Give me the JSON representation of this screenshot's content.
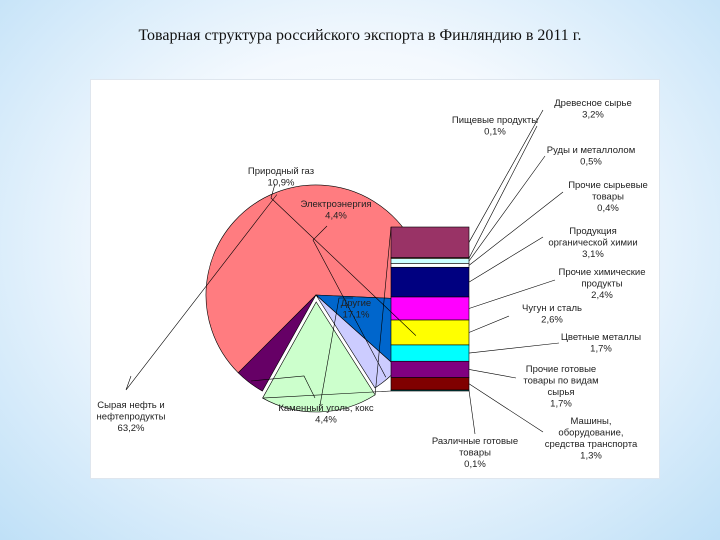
{
  "slide_title": "Товарная структура российского экспорта в Финляндию в 2011 г.",
  "chart_data": {
    "type": "bar-of-pie",
    "title": "",
    "pie": [
      {
        "name": "Сырая нефть и нефтепродукты",
        "value": 63.2,
        "label": "63,2%",
        "color": "#ff7c80"
      },
      {
        "name": "Природный газ",
        "value": 10.9,
        "label": "10,9%",
        "color": "#0066cc"
      },
      {
        "name": "Электроэнергия",
        "value": 4.4,
        "label": "4,4%",
        "color": "#ccccff"
      },
      {
        "name": "Другие",
        "value": 17.1,
        "label": "17,1%",
        "color": "#ccffcc"
      },
      {
        "name": "Каменный уголь, кокс",
        "value": 4.4,
        "label": "4,4%",
        "color": "#660066"
      }
    ],
    "bar": [
      {
        "name": "Древесное сырье",
        "value": 3.2,
        "label": "3,2%",
        "color": "#993366"
      },
      {
        "name": "Пищевые продукты",
        "value": 0.1,
        "label": "0,1%",
        "color": "#ffffcc"
      },
      {
        "name": "Руды и металлолом",
        "value": 0.5,
        "label": "0,5%",
        "color": "#ccffff"
      },
      {
        "name": "Прочие сырьевые товары",
        "value": 0.4,
        "label": "0,4%",
        "color": "#ffffff"
      },
      {
        "name": "Продукция органической химии",
        "value": 3.1,
        "label": "3,1%",
        "color": "#000080"
      },
      {
        "name": "Прочие химические продукты",
        "value": 2.4,
        "label": "2,4%",
        "color": "#ff00ff"
      },
      {
        "name": "Чугун и сталь",
        "value": 2.6,
        "label": "2,6%",
        "color": "#ffff00"
      },
      {
        "name": "Цветные металлы",
        "value": 1.7,
        "label": "1,7%",
        "color": "#00ffff"
      },
      {
        "name": "Прочие готовые товары по видам сырья",
        "value": 1.7,
        "label": "1,7%",
        "color": "#800080"
      },
      {
        "name": "Машины, оборудование, средства транспорта",
        "value": 1.3,
        "label": "1,3%",
        "color": "#800000"
      },
      {
        "name": "Различные готовые товары",
        "value": 0.1,
        "label": "0,1%",
        "color": "#008080"
      }
    ],
    "legend": "none",
    "grid": false
  },
  "label_lines": {
    "pie": [
      [
        "Сырая нефть и",
        "нефтепродукты",
        "63,2%"
      ],
      [
        "Природный газ",
        "10,9%"
      ],
      [
        "Электроэнергия",
        "4,4%"
      ],
      [
        "Другие",
        "17,1%"
      ],
      [
        "Каменный уголь, кокс",
        "4,4%"
      ]
    ],
    "bar": [
      [
        "Древесное сырье",
        "3,2%"
      ],
      [
        "Пищевые продукты",
        "0,1%"
      ],
      [
        "Руды и металлолом",
        "0,5%"
      ],
      [
        "Прочие сырьевые",
        "товары",
        "0,4%"
      ],
      [
        "Продукция",
        "органической химии",
        "3,1%"
      ],
      [
        "Прочие химические",
        "продукты",
        "2,4%"
      ],
      [
        "Чугун и сталь",
        "2,6%"
      ],
      [
        "Цветные металлы",
        "1,7%"
      ],
      [
        "Прочие готовые",
        "товары по видам",
        "сырья",
        "1,7%"
      ],
      [
        "Машины,",
        "оборудование,",
        "средства транспорта",
        "1,3%"
      ],
      [
        "Различные готовые",
        "товары",
        "0,1%"
      ]
    ]
  }
}
